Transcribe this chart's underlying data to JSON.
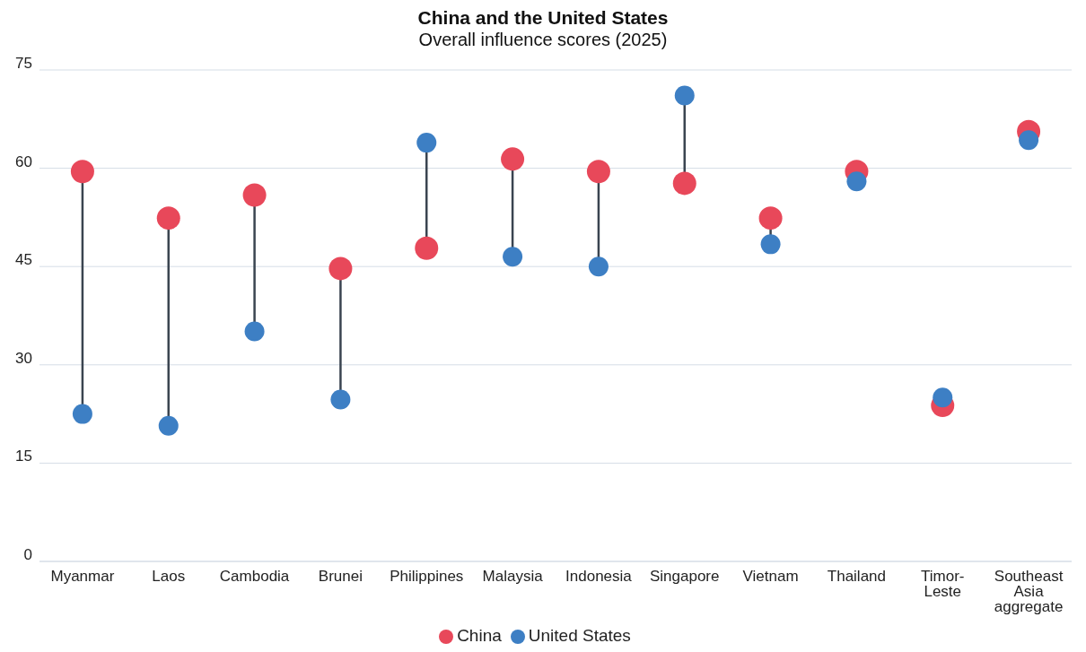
{
  "chart_data": {
    "type": "scatter",
    "title": "China and the United States",
    "subtitle": "Overall influence scores (2025)",
    "categories": [
      "Myanmar",
      "Laos",
      "Cambodia",
      "Brunei",
      "Philippines",
      "Malaysia",
      "Indonesia",
      "Singapore",
      "Vietnam",
      "Thailand",
      "Timor-Leste",
      "Southeast Asia aggregate"
    ],
    "series": [
      {
        "name": "China",
        "color": "#e8485a",
        "values": [
          59.5,
          52.4,
          55.9,
          44.7,
          47.8,
          61.4,
          59.5,
          57.7,
          52.4,
          59.5,
          23.8,
          65.6
        ]
      },
      {
        "name": "United States",
        "color": "#3d7fc4",
        "values": [
          22.5,
          20.7,
          35.1,
          24.7,
          63.9,
          46.5,
          45.0,
          71.1,
          48.4,
          58.0,
          25.0,
          64.3
        ]
      }
    ],
    "ylim": [
      0,
      75
    ],
    "yticks": [
      0,
      15,
      30,
      45,
      60,
      75
    ],
    "grid": "y",
    "legend": "bottom",
    "marker": "circle"
  }
}
